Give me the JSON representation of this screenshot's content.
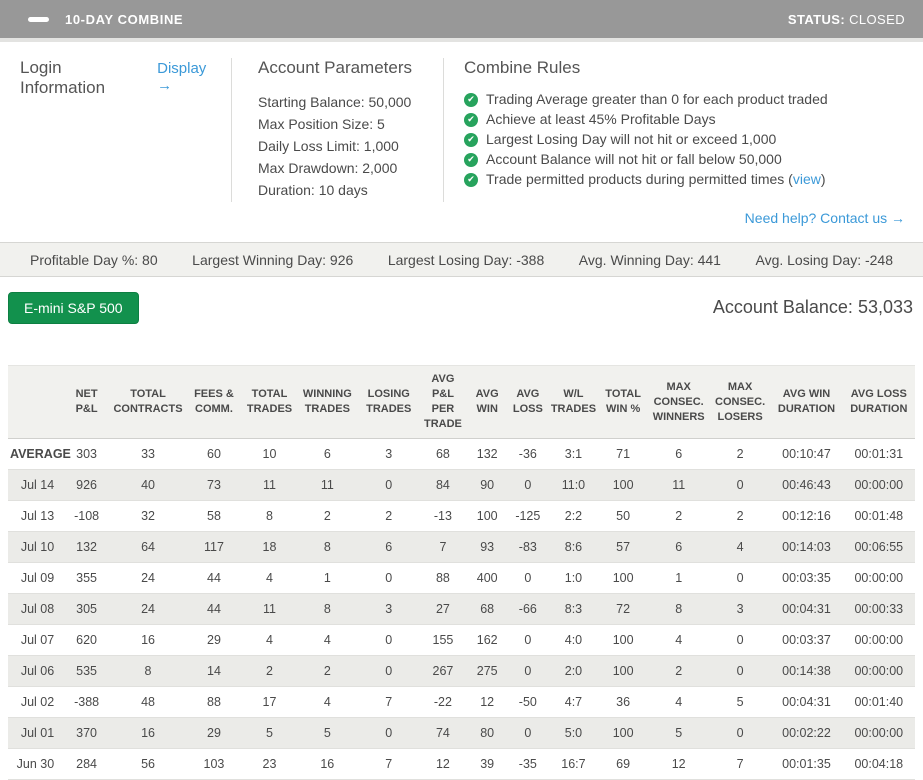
{
  "header": {
    "title": "10-DAY COMBINE",
    "status_label": "STATUS:",
    "status_value": "CLOSED"
  },
  "panel": {
    "login_title": "Login Information",
    "display_link": "Display →",
    "params_title": "Account Parameters",
    "params": [
      "Starting Balance: 50,000",
      "Max Position Size: 5",
      "Daily Loss Limit: 1,000",
      "Max Drawdown: 2,000",
      "Duration: 10 days"
    ],
    "rules_title": "Combine Rules",
    "rules": [
      {
        "text": "Trading Average greater than 0 for each product traded"
      },
      {
        "text": "Achieve at least 45% Profitable Days"
      },
      {
        "text": "Largest Losing Day will not hit or exceed 1,000"
      },
      {
        "text": "Account Balance will not hit or fall below 50,000"
      },
      {
        "text": "Trade permitted products during permitted times (",
        "link": "view",
        "suffix": ")"
      }
    ],
    "help_link": "Need help? Contact us →"
  },
  "stats": [
    "Profitable Day %: 80",
    "Largest Winning Day: 926",
    "Largest Losing Day: -388",
    "Avg. Winning Day: 441",
    "Avg. Losing Day: -248"
  ],
  "product_button": "E-mini S&P 500",
  "balance_label": "Account Balance:",
  "balance_value": "53,033",
  "table": {
    "columns": [
      "NET P&L",
      "TOTAL CONTRACTS",
      "FEES & COMM.",
      "TOTAL TRADES",
      "WINNING TRADES",
      "LOSING TRADES",
      "AVG P&L PER TRADE",
      "AVG WIN",
      "AVG LOSS",
      "W/L TRADES",
      "TOTAL WIN %",
      "MAX CONSEC. WINNERS",
      "MAX CONSEC. LOSERS",
      "AVG WIN DURATION",
      "AVG LOSS DURATION"
    ],
    "rows": [
      {
        "label": "AVERAGE",
        "values": [
          "303",
          "33",
          "60",
          "10",
          "6",
          "3",
          "68",
          "132",
          "-36",
          "3:1",
          "71",
          "6",
          "2",
          "00:10:47",
          "00:01:31"
        ]
      },
      {
        "label": "Jul 14",
        "values": [
          "926",
          "40",
          "73",
          "11",
          "11",
          "0",
          "84",
          "90",
          "0",
          "11:0",
          "100",
          "11",
          "0",
          "00:46:43",
          "00:00:00"
        ]
      },
      {
        "label": "Jul 13",
        "values": [
          "-108",
          "32",
          "58",
          "8",
          "2",
          "2",
          "-13",
          "100",
          "-125",
          "2:2",
          "50",
          "2",
          "2",
          "00:12:16",
          "00:01:48"
        ]
      },
      {
        "label": "Jul 10",
        "values": [
          "132",
          "64",
          "117",
          "18",
          "8",
          "6",
          "7",
          "93",
          "-83",
          "8:6",
          "57",
          "6",
          "4",
          "00:14:03",
          "00:06:55"
        ]
      },
      {
        "label": "Jul 09",
        "values": [
          "355",
          "24",
          "44",
          "4",
          "1",
          "0",
          "88",
          "400",
          "0",
          "1:0",
          "100",
          "1",
          "0",
          "00:03:35",
          "00:00:00"
        ]
      },
      {
        "label": "Jul 08",
        "values": [
          "305",
          "24",
          "44",
          "11",
          "8",
          "3",
          "27",
          "68",
          "-66",
          "8:3",
          "72",
          "8",
          "3",
          "00:04:31",
          "00:00:33"
        ]
      },
      {
        "label": "Jul 07",
        "values": [
          "620",
          "16",
          "29",
          "4",
          "4",
          "0",
          "155",
          "162",
          "0",
          "4:0",
          "100",
          "4",
          "0",
          "00:03:37",
          "00:00:00"
        ]
      },
      {
        "label": "Jul 06",
        "values": [
          "535",
          "8",
          "14",
          "2",
          "2",
          "0",
          "267",
          "275",
          "0",
          "2:0",
          "100",
          "2",
          "0",
          "00:14:38",
          "00:00:00"
        ]
      },
      {
        "label": "Jul 02",
        "values": [
          "-388",
          "48",
          "88",
          "17",
          "4",
          "7",
          "-22",
          "12",
          "-50",
          "4:7",
          "36",
          "4",
          "5",
          "00:04:31",
          "00:01:40"
        ]
      },
      {
        "label": "Jul 01",
        "values": [
          "370",
          "16",
          "29",
          "5",
          "5",
          "0",
          "74",
          "80",
          "0",
          "5:0",
          "100",
          "5",
          "0",
          "00:02:22",
          "00:00:00"
        ]
      },
      {
        "label": "Jun 30",
        "values": [
          "284",
          "56",
          "103",
          "23",
          "16",
          "7",
          "12",
          "39",
          "-35",
          "16:7",
          "69",
          "12",
          "7",
          "00:01:35",
          "00:04:18"
        ]
      }
    ]
  },
  "colors": {
    "accent_blue": "#3b99d8",
    "button_green": "#12914d",
    "check_green": "#27a35d",
    "topbar_gray": "#989898"
  }
}
